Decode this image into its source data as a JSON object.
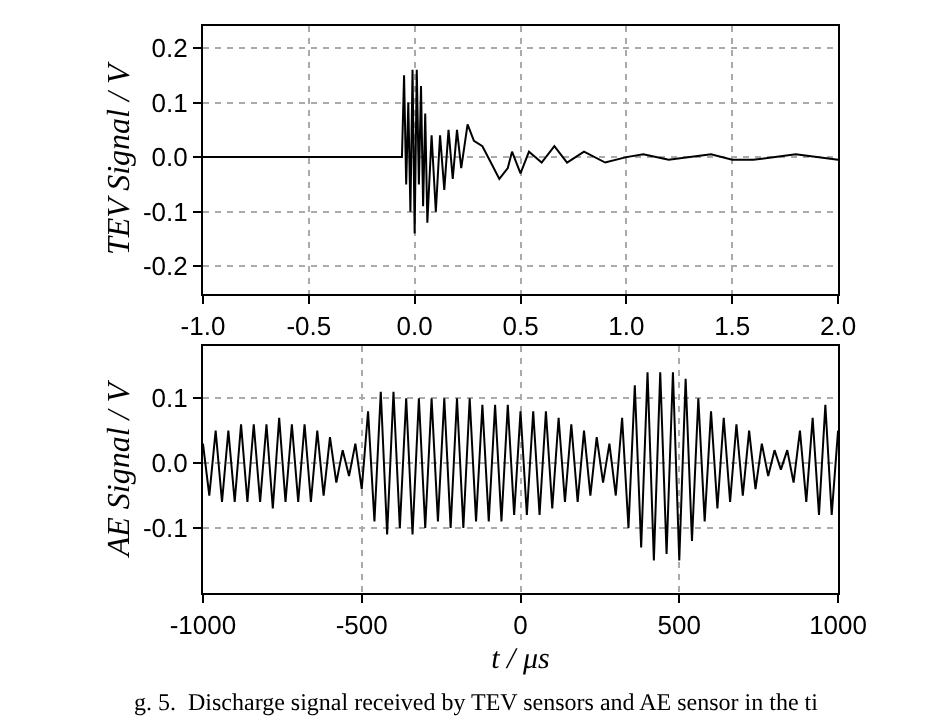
{
  "chart_data": [
    {
      "type": "line",
      "ylabel": "TEV Signal / V",
      "xlim": [
        -1.0,
        2.0
      ],
      "ylim": [
        -0.25,
        0.24
      ],
      "xticks": [
        {
          "value": -1.0,
          "label": "-1.0"
        },
        {
          "value": -0.5,
          "label": "-0.5"
        },
        {
          "value": 0,
          "label": "0.0"
        },
        0.5,
        {
          "value": 1,
          "label": "1.0"
        },
        1.5,
        {
          "value": 2,
          "label": "2.0"
        }
      ],
      "yticks": [
        -0.2,
        -0.1,
        {
          "value": 0,
          "label": "0.0"
        },
        0.1,
        0.2
      ],
      "grid": true,
      "marker": "none",
      "line_style": "solid",
      "series": [
        {
          "color": "#000000",
          "x": [
            -1.0,
            -0.5,
            -0.06,
            -0.05,
            -0.04,
            -0.03,
            -0.02,
            -0.01,
            0.0,
            0.01,
            0.02,
            0.03,
            0.04,
            0.05,
            0.06,
            0.08,
            0.1,
            0.12,
            0.14,
            0.16,
            0.18,
            0.2,
            0.22,
            0.25,
            0.28,
            0.32,
            0.36,
            0.4,
            0.44,
            0.46,
            0.5,
            0.54,
            0.6,
            0.66,
            0.72,
            0.8,
            0.9,
            1.0,
            1.08,
            1.2,
            1.4,
            1.5,
            1.6,
            1.8,
            2.0
          ],
          "values": [
            0,
            0,
            0,
            0.15,
            -0.05,
            0.1,
            -0.1,
            0.16,
            -0.14,
            0.16,
            -0.05,
            0.13,
            -0.09,
            0.08,
            -0.12,
            0.04,
            -0.1,
            0.04,
            -0.06,
            0.05,
            -0.04,
            0.05,
            -0.02,
            0.06,
            0.03,
            0.02,
            -0.01,
            -0.04,
            -0.02,
            0.01,
            -0.03,
            0.01,
            -0.01,
            0.02,
            -0.01,
            0.01,
            -0.01,
            0,
            0.005,
            -0.005,
            0.005,
            -0.005,
            -0.005,
            0.005,
            -0.005
          ]
        }
      ]
    },
    {
      "type": "line",
      "xlabel": "t / μs",
      "ylabel": "AE Signal / V",
      "xlim": [
        -1000,
        1000
      ],
      "ylim": [
        -0.2,
        0.18
      ],
      "xticks": [
        -1000,
        -500,
        0,
        500,
        1000
      ],
      "yticks": [
        -0.1,
        {
          "value": 0,
          "label": "0.0"
        },
        0.1
      ],
      "grid": true,
      "marker": "none",
      "line_style": "solid",
      "annotations": [
        "g. 5.  Discharge signal received by TEV sensors and AE sensor in the ti"
      ],
      "series": [
        {
          "color": "#000000",
          "x": [
            -1000,
            -980,
            -960,
            -940,
            -920,
            -900,
            -880,
            -860,
            -840,
            -820,
            -800,
            -780,
            -760,
            -740,
            -720,
            -700,
            -680,
            -660,
            -640,
            -620,
            -600,
            -580,
            -560,
            -540,
            -520,
            -500,
            -480,
            -460,
            -440,
            -420,
            -400,
            -380,
            -360,
            -340,
            -320,
            -300,
            -280,
            -260,
            -240,
            -220,
            -200,
            -180,
            -160,
            -140,
            -120,
            -100,
            -80,
            -60,
            -40,
            -20,
            0,
            20,
            40,
            60,
            80,
            100,
            120,
            140,
            160,
            180,
            200,
            220,
            240,
            260,
            280,
            300,
            320,
            340,
            360,
            380,
            400,
            420,
            440,
            460,
            480,
            500,
            520,
            540,
            560,
            580,
            600,
            620,
            640,
            660,
            680,
            700,
            720,
            740,
            760,
            780,
            800,
            820,
            840,
            860,
            880,
            900,
            920,
            940,
            960,
            980,
            1000
          ],
          "values": [
            0.03,
            -0.05,
            0.05,
            -0.06,
            0.05,
            -0.06,
            0.06,
            -0.06,
            0.06,
            -0.06,
            0.06,
            -0.07,
            0.07,
            -0.06,
            0.06,
            -0.06,
            0.06,
            -0.06,
            0.05,
            -0.05,
            0.04,
            -0.03,
            0.02,
            -0.02,
            0.03,
            -0.04,
            0.08,
            -0.09,
            0.11,
            -0.11,
            0.11,
            -0.1,
            0.1,
            -0.11,
            0.1,
            -0.1,
            0.1,
            -0.09,
            0.1,
            -0.1,
            0.1,
            -0.1,
            0.1,
            -0.09,
            0.09,
            -0.09,
            0.09,
            -0.09,
            0.09,
            -0.08,
            0.08,
            -0.08,
            0.08,
            -0.08,
            0.08,
            -0.07,
            0.07,
            -0.06,
            0.06,
            -0.06,
            0.05,
            -0.05,
            0.04,
            -0.03,
            0.03,
            -0.05,
            0.07,
            -0.1,
            0.12,
            -0.13,
            0.14,
            -0.15,
            0.14,
            -0.14,
            0.14,
            -0.15,
            0.13,
            -0.12,
            0.1,
            -0.09,
            0.08,
            -0.07,
            0.07,
            -0.06,
            0.06,
            -0.05,
            0.05,
            -0.04,
            0.03,
            -0.02,
            0.02,
            -0.01,
            0.02,
            -0.03,
            0.05,
            -0.06,
            0.07,
            -0.08,
            0.09,
            -0.08,
            0.05
          ]
        }
      ]
    }
  ]
}
